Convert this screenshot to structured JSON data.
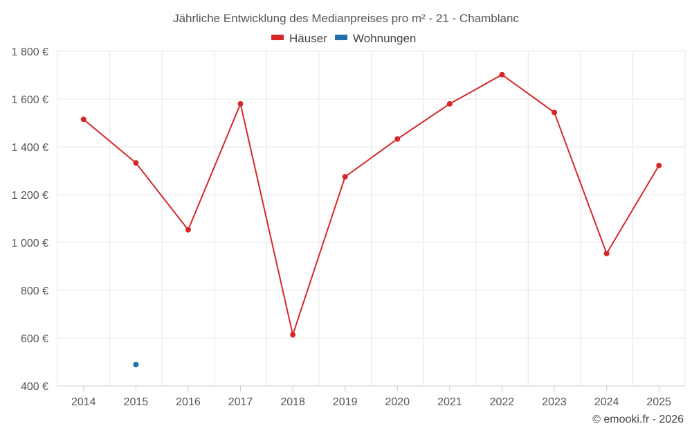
{
  "chart_data": {
    "type": "line",
    "title": "Jährliche Entwicklung des Medianpreises pro m² - 21 - Chamblanc",
    "categories": [
      "2014",
      "2015",
      "2016",
      "2017",
      "2018",
      "2019",
      "2020",
      "2021",
      "2022",
      "2023",
      "2024",
      "2025"
    ],
    "y_ticks": [
      400,
      600,
      800,
      1000,
      1200,
      1400,
      1600,
      1800
    ],
    "y_tick_labels": [
      "400 €",
      "600 €",
      "800 €",
      "1 000 €",
      "1 200 €",
      "1 400 €",
      "1 600 €",
      "1 800 €"
    ],
    "ylim": [
      400,
      1800
    ],
    "xlabel": "",
    "ylabel": "",
    "grid": true,
    "legend_position": "top-center",
    "series": [
      {
        "name": "Häuser",
        "color": "#d62728",
        "values": [
          1515,
          1333,
          1053,
          1580,
          614,
          1275,
          1433,
          1580,
          1702,
          1544,
          954,
          1322
        ]
      },
      {
        "name": "Wohnungen",
        "color": "#1f6fa8",
        "values": [
          null,
          489,
          null,
          null,
          null,
          null,
          null,
          null,
          null,
          null,
          null,
          null
        ]
      }
    ],
    "credit": "© emooki.fr - 2026"
  }
}
